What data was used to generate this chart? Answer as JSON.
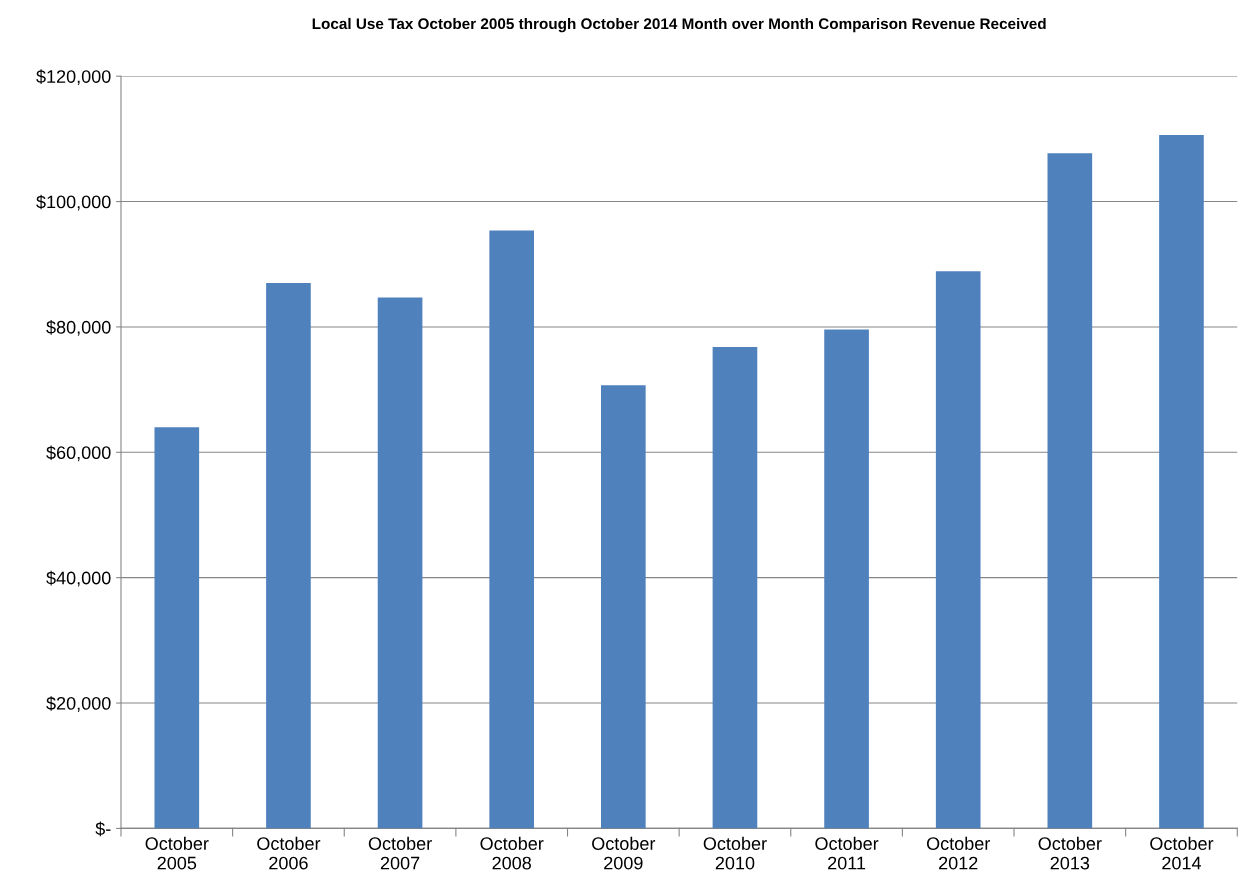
{
  "chart_data": {
    "type": "bar",
    "title": "Local Use Tax October 2005 through October 2014 Month over Month Comparison Revenue Received",
    "categories": [
      "October\n2005",
      "October\n2006",
      "October\n2007",
      "October\n2008",
      "October\n2009",
      "October\n2010",
      "October\n2011",
      "October\n2012",
      "October\n2013",
      "October\n2014"
    ],
    "values": [
      64000,
      87000,
      84700,
      95400,
      70700,
      76800,
      79600,
      88900,
      107700,
      110600
    ],
    "color": "#4f81bd",
    "ylim": [
      0,
      120000
    ],
    "yticks": [
      {
        "value": 0,
        "label": "$-"
      },
      {
        "value": 20000,
        "label": "$20,000"
      },
      {
        "value": 40000,
        "label": "$40,000"
      },
      {
        "value": 60000,
        "label": "$60,000"
      },
      {
        "value": 80000,
        "label": "$80,000"
      },
      {
        "value": 100000,
        "label": "$100,000"
      },
      {
        "value": 120000,
        "label": "$120,000"
      }
    ],
    "grid": "y",
    "legend": false
  }
}
